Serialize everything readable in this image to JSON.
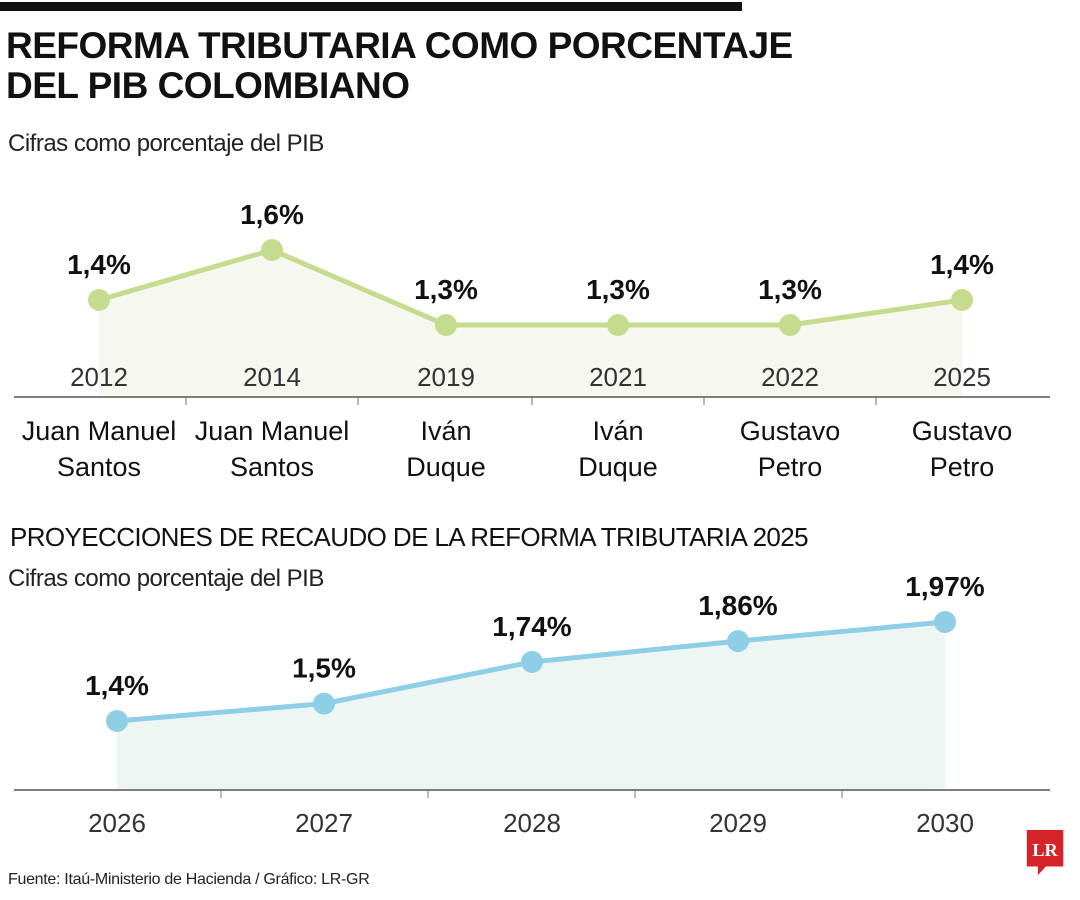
{
  "header": {
    "title_line1": "REFORMA TRIBUTARIA COMO PORCENTAJE",
    "title_line2": "DEL PIB COLOMBIANO",
    "subtitle": "Cifras como porcentaje del PIB"
  },
  "section2": {
    "title": "PROYECCIONES DE RECAUDO DE LA REFORMA TRIBUTARIA 2025",
    "subtitle": "Cifras como porcentaje del PIB"
  },
  "footer": {
    "source": "Fuente: Itaú-Ministerio de Hacienda / Gráfico: LR-GR",
    "logo_text": "LR"
  },
  "colors": {
    "line1": "#c5dc8f",
    "fill1": "#f6f8ef",
    "line2": "#8fcfe6",
    "fill2": "#eef6f4",
    "logo": "#d6232a"
  },
  "chart_data": [
    {
      "type": "line",
      "categories": [
        "2012",
        "2014",
        "2019",
        "2021",
        "2022",
        "2025"
      ],
      "category_labels": [
        [
          "Juan Manuel",
          "Santos"
        ],
        [
          "Juan Manuel",
          "Santos"
        ],
        [
          "Iván",
          "Duque"
        ],
        [
          "Iván",
          "Duque"
        ],
        [
          "Gustavo",
          "Petro"
        ],
        [
          "Gustavo",
          "Petro"
        ]
      ],
      "values": [
        1.4,
        1.6,
        1.3,
        1.3,
        1.3,
        1.4
      ],
      "data_labels": [
        "1,4%",
        "1,6%",
        "1,3%",
        "1,3%",
        "1,3%",
        "1,4%"
      ],
      "title": "REFORMA TRIBUTARIA COMO PORCENTAJE DEL PIB COLOMBIANO",
      "subtitle": "Cifras como porcentaje del PIB",
      "grid": false,
      "area_fill": true
    },
    {
      "type": "line",
      "categories": [
        "2026",
        "2027",
        "2028",
        "2029",
        "2030"
      ],
      "values": [
        1.4,
        1.5,
        1.74,
        1.86,
        1.97
      ],
      "data_labels": [
        "1,4%",
        "1,5%",
        "1,74%",
        "1,86%",
        "1,97%"
      ],
      "title": "PROYECCIONES DE RECAUDO DE LA REFORMA TRIBUTARIA 2025",
      "subtitle": "Cifras como porcentaje del PIB",
      "grid": false,
      "area_fill": true
    }
  ]
}
